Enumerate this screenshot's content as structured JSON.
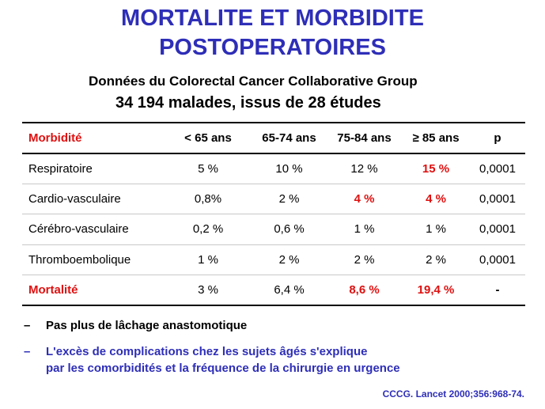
{
  "title": {
    "line1": "MORTALITE ET MORBIDITE",
    "line2": "POSTOPERATOIRES"
  },
  "subtitle": {
    "line1": "Données du Colorectal Cancer Collaborative Group",
    "line2": "34 194 malades, issus de 28 études"
  },
  "table": {
    "headers": [
      "Morbidité",
      "< 65 ans",
      "65-74 ans",
      "75-84 ans",
      "≥ 85 ans",
      "p"
    ],
    "rows": [
      [
        "Respiratoire",
        "5 %",
        "10 %",
        "12 %",
        "15 %",
        "0,0001"
      ],
      [
        "Cardio-vasculaire",
        "0,8%",
        "2 %",
        "4 %",
        "4 %",
        "0,0001"
      ],
      [
        "Cérébro-vasculaire",
        "0,2 %",
        "0,6 %",
        "1 %",
        "1 %",
        "0,0001"
      ],
      [
        "Thromboembolique",
        "1 %",
        "2 %",
        "2 %",
        "2 %",
        "0,0001"
      ],
      [
        "Mortalité",
        "3 %",
        "6,4 %",
        "8,6 %",
        "19,4 %",
        "-"
      ]
    ]
  },
  "bullets": {
    "dash": "–",
    "item1": "Pas plus de lâchage anastomotique",
    "item2_line1": "L'excès de complications chez les sujets âgés s'explique",
    "item2_line2": "par les comorbidités et la fréquence de la chirurgie en urgence"
  },
  "reference": "CCCG. Lancet 2000;356:968-74.",
  "colors": {
    "title_blue": "#2e2eb8",
    "highlight_red": "#e01010",
    "text_black": "#000000"
  }
}
